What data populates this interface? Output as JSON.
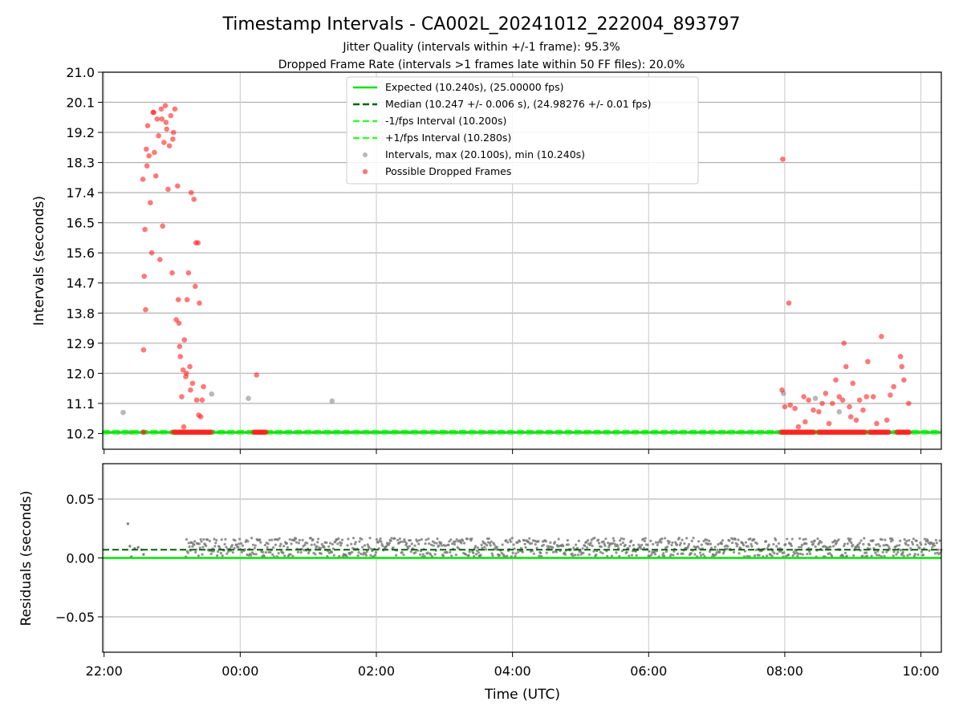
{
  "figure": {
    "title": "Timestamp Intervals - CA002L_20241012_222004_893797",
    "subtitle_1": "Jitter Quality (intervals within +/-1 frame): 95.3%",
    "subtitle_2": "Dropped Frame Rate (intervals >1 frames late within 50 FF files): 20.0%"
  },
  "chart_data": [
    {
      "type": "scatter",
      "ylabel": "Intervals (seconds)",
      "x_unit": "hours relative to 00:00 UTC",
      "xlim": [
        -2.02,
        10.3
      ],
      "ylim": [
        9.73,
        21.0
      ],
      "y_ticks": [
        "10.2",
        "11.1",
        "12.0",
        "12.9",
        "13.8",
        "14.7",
        "15.6",
        "16.5",
        "17.4",
        "18.3",
        "19.2",
        "20.1",
        "21.0"
      ],
      "grid": true,
      "legend_position": "top-center",
      "legend": [
        {
          "label": "Expected (10.240s), (25.00000 fps)",
          "style": "solid",
          "color": "#00e600"
        },
        {
          "label": "Median (10.247 +/- 0.006 s), (24.98276 +/- 0.01 fps)",
          "style": "dashed",
          "color": "#006400"
        },
        {
          "label": "-1/fps Interval (10.200s)",
          "style": "dashed",
          "color": "#33ff33"
        },
        {
          "label": "+1/fps Interval (10.280s)",
          "style": "dashed",
          "color": "#33ff33"
        },
        {
          "label": "Intervals, max (20.100s), min (10.240s)",
          "style": "marker",
          "color": "#888888"
        },
        {
          "label": "Possible Dropped Frames",
          "style": "marker",
          "color": "#ff2020"
        }
      ],
      "lines": {
        "expected": 10.24,
        "median": 10.247,
        "minus_1fps": 10.2,
        "plus_1fps": 10.28
      },
      "gray_points": [
        [
          -1.8,
          10.24
        ],
        [
          -1.7,
          10.24
        ],
        [
          -1.6,
          10.24
        ],
        [
          -1.72,
          10.83
        ],
        [
          -0.42,
          11.38
        ],
        [
          0.12,
          11.25
        ],
        [
          1.35,
          11.17
        ],
        [
          7.98,
          11.4
        ],
        [
          8.45,
          11.25
        ],
        [
          8.8,
          10.85
        ]
      ],
      "dropped_points": [
        [
          -1.43,
          17.8
        ],
        [
          -1.42,
          12.7
        ],
        [
          -1.4,
          16.3
        ],
        [
          -1.38,
          18.7
        ],
        [
          -1.36,
          19.4
        ],
        [
          -1.34,
          18.5
        ],
        [
          -1.32,
          17.1
        ],
        [
          -1.3,
          15.6
        ],
        [
          -1.28,
          19.8
        ],
        [
          -1.26,
          18.6
        ],
        [
          -1.24,
          17.9
        ],
        [
          -1.22,
          19.6
        ],
        [
          -1.2,
          19.1
        ],
        [
          -1.18,
          15.4
        ],
        [
          -1.16,
          19.9
        ],
        [
          -1.14,
          16.4
        ],
        [
          -1.12,
          18.9
        ],
        [
          -1.1,
          20.0
        ],
        [
          -1.08,
          19.3
        ],
        [
          -1.06,
          17.5
        ],
        [
          -1.04,
          18.8
        ],
        [
          -1.02,
          19.7
        ],
        [
          -1.0,
          15.0
        ],
        [
          -0.98,
          19.2
        ],
        [
          -0.96,
          19.9
        ],
        [
          -0.94,
          13.6
        ],
        [
          -0.92,
          17.6
        ],
        [
          -0.9,
          13.5
        ],
        [
          -0.88,
          12.5
        ],
        [
          -0.86,
          11.3
        ],
        [
          -0.84,
          12.1
        ],
        [
          -0.82,
          13.0
        ],
        [
          -0.8,
          11.9
        ],
        [
          -0.78,
          14.2
        ],
        [
          -0.76,
          15.0
        ],
        [
          -0.74,
          12.2
        ],
        [
          -0.72,
          17.4
        ],
        [
          -0.7,
          11.7
        ],
        [
          -0.68,
          17.2
        ],
        [
          -0.66,
          14.6
        ],
        [
          -0.64,
          11.2
        ],
        [
          -0.62,
          15.9
        ],
        [
          -0.6,
          14.1
        ],
        [
          -0.58,
          10.7
        ],
        [
          -0.56,
          11.2
        ],
        [
          -0.54,
          11.6
        ],
        [
          -1.41,
          14.9
        ],
        [
          -1.39,
          13.9
        ],
        [
          -1.37,
          18.2
        ],
        [
          -1.27,
          19.8
        ],
        [
          -1.15,
          19.6
        ],
        [
          -1.09,
          19.5
        ],
        [
          -0.99,
          19.0
        ],
        [
          -0.91,
          14.2
        ],
        [
          -0.89,
          12.8
        ],
        [
          -0.83,
          10.4
        ],
        [
          -0.79,
          12.0
        ],
        [
          -0.73,
          11.5
        ],
        [
          -0.65,
          15.9
        ],
        [
          -0.61,
          10.75
        ],
        [
          0.24,
          11.95
        ],
        [
          7.97,
          18.4
        ],
        [
          8.06,
          14.1
        ],
        [
          7.96,
          11.5
        ],
        [
          8.0,
          11.0
        ],
        [
          8.08,
          11.05
        ],
        [
          8.15,
          10.95
        ],
        [
          8.2,
          10.4
        ],
        [
          8.28,
          11.3
        ],
        [
          8.35,
          11.2
        ],
        [
          8.42,
          10.9
        ],
        [
          8.5,
          10.85
        ],
        [
          8.55,
          11.1
        ],
        [
          8.6,
          11.4
        ],
        [
          8.65,
          10.5
        ],
        [
          8.7,
          11.1
        ],
        [
          8.75,
          11.8
        ],
        [
          8.8,
          11.3
        ],
        [
          8.85,
          11.2
        ],
        [
          8.87,
          12.9
        ],
        [
          8.9,
          12.2
        ],
        [
          8.95,
          11.0
        ],
        [
          9.0,
          11.7
        ],
        [
          9.05,
          10.6
        ],
        [
          9.1,
          11.2
        ],
        [
          9.15,
          10.9
        ],
        [
          9.2,
          11.3
        ],
        [
          9.22,
          12.35
        ],
        [
          9.3,
          11.3
        ],
        [
          9.35,
          10.5
        ],
        [
          9.42,
          13.1
        ],
        [
          9.5,
          10.6
        ],
        [
          9.55,
          11.35
        ],
        [
          9.6,
          11.6
        ],
        [
          9.7,
          12.5
        ],
        [
          9.72,
          12.2
        ],
        [
          9.75,
          11.8
        ],
        [
          9.82,
          11.1
        ],
        [
          8.3,
          10.55
        ],
        [
          8.97,
          10.7
        ]
      ]
    },
    {
      "type": "scatter",
      "ylabel": "Residuals (seconds)",
      "xlabel": "Time (UTC)",
      "xlim": [
        -2.02,
        10.3
      ],
      "ylim": [
        -0.08,
        0.08
      ],
      "y_ticks": [
        "−0.05",
        "0.00",
        "0.05"
      ],
      "x_ticks": [
        "22:00",
        "00:00",
        "02:00",
        "04:00",
        "06:00",
        "08:00",
        "10:00"
      ],
      "x_tick_values": [
        -2,
        0,
        2,
        4,
        6,
        8,
        10
      ],
      "grid": true,
      "lines": {
        "zero": 0.0,
        "median": 0.007
      },
      "residual_band": {
        "start": -0.8,
        "end": 10.3,
        "min": 0.001,
        "max": 0.017
      },
      "early_points": [
        [
          -1.65,
          0.029
        ],
        [
          -1.62,
          0.01
        ],
        [
          -1.55,
          0.008
        ],
        [
          -1.5,
          0.009
        ],
        [
          -1.45,
          0.007
        ],
        [
          -1.42,
          0.003
        ],
        [
          -1.6,
          0.001
        ]
      ]
    }
  ]
}
